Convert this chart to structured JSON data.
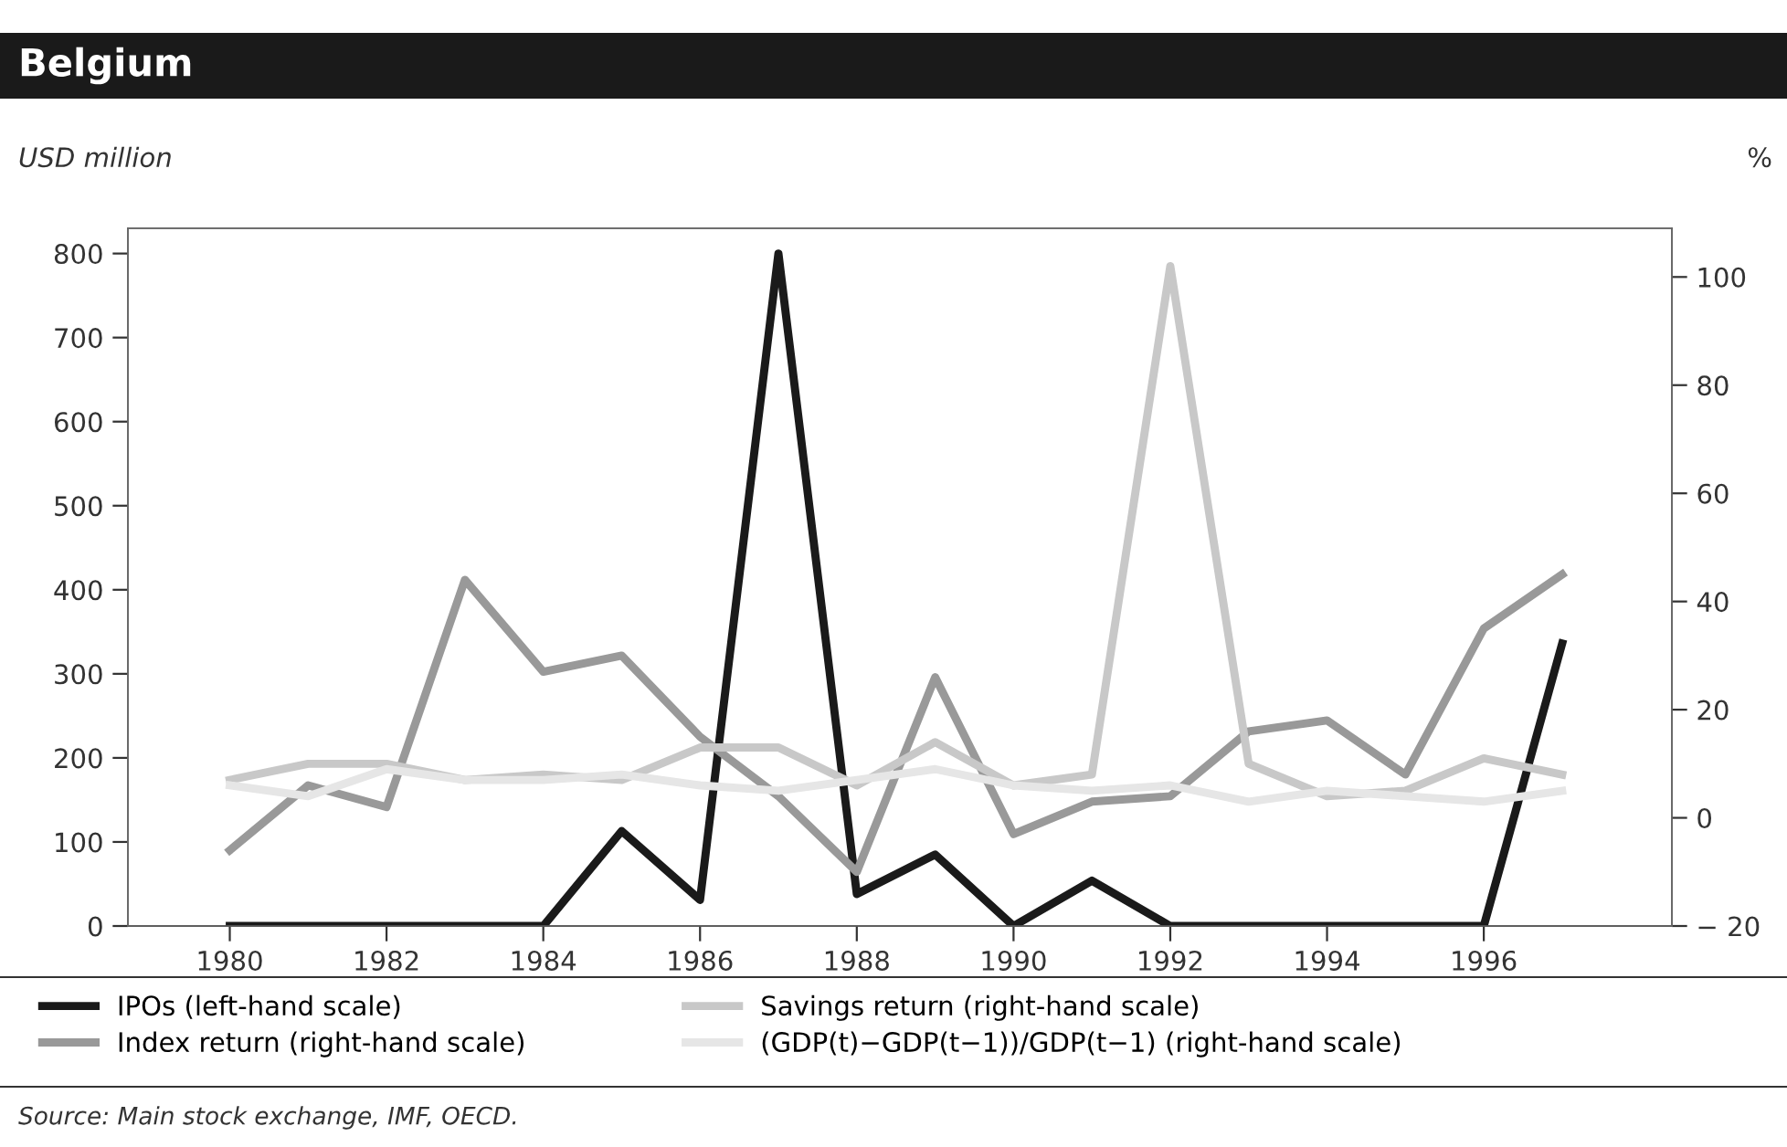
{
  "chart_data": {
    "type": "line",
    "title": "Belgium",
    "ylabel": "USD million",
    "y2label": "%",
    "x": [
      1980,
      1981,
      1982,
      1983,
      1984,
      1985,
      1986,
      1987,
      1988,
      1989,
      1990,
      1991,
      1992,
      1993,
      1994,
      1995,
      1996,
      1997
    ],
    "series": [
      {
        "name": "IPOs (left-hand scale)",
        "color": "#1a1a1a",
        "values": [
          0,
          0,
          0,
          0,
          0,
          113,
          31,
          800,
          38,
          85,
          0,
          54,
          0,
          0,
          0,
          0,
          0,
          336
        ]
      },
      {
        "name": "Index return (right-hand scale)",
        "color": "#999999",
        "axis": "y2",
        "values": [
          -6,
          6,
          2,
          44,
          27,
          30,
          15,
          4,
          -10,
          26,
          -3,
          3,
          4,
          16,
          18,
          8,
          35,
          45
        ]
      },
      {
        "name": "Savings return (right-hand scale)",
        "color": "#c8c8c8",
        "axis": "y2",
        "values": [
          7,
          10,
          10,
          7,
          8,
          7,
          13,
          13,
          6,
          14,
          6,
          8,
          102,
          10,
          4,
          5,
          11,
          8
        ]
      },
      {
        "name": "(GDP(t)−GDP(t−1))/GDP(t−1) (right-hand scale)",
        "color": "#e6e6e6",
        "axis": "y2",
        "values": [
          6,
          4,
          9,
          7,
          7,
          8,
          6,
          5,
          7,
          9,
          6,
          5,
          6,
          3,
          5,
          4,
          3,
          5
        ]
      }
    ],
    "xlim": [
      1978.7,
      1998.4
    ],
    "xticks": [
      1980,
      1982,
      1984,
      1986,
      1988,
      1990,
      1992,
      1994,
      1996
    ],
    "ylim": [
      0,
      830
    ],
    "yticks": [
      0,
      100,
      200,
      300,
      400,
      500,
      600,
      700,
      800
    ],
    "y2lim": [
      -20,
      109
    ],
    "y2ticks": [
      {
        "value": -20,
        "label": "− 20"
      },
      0,
      20,
      40,
      60,
      80,
      100
    ],
    "grid": false,
    "legend": "bottom",
    "line_style": "solid",
    "marker": "none",
    "annotations": [
      "Source: Main stock exchange, IMF, OECD."
    ]
  }
}
